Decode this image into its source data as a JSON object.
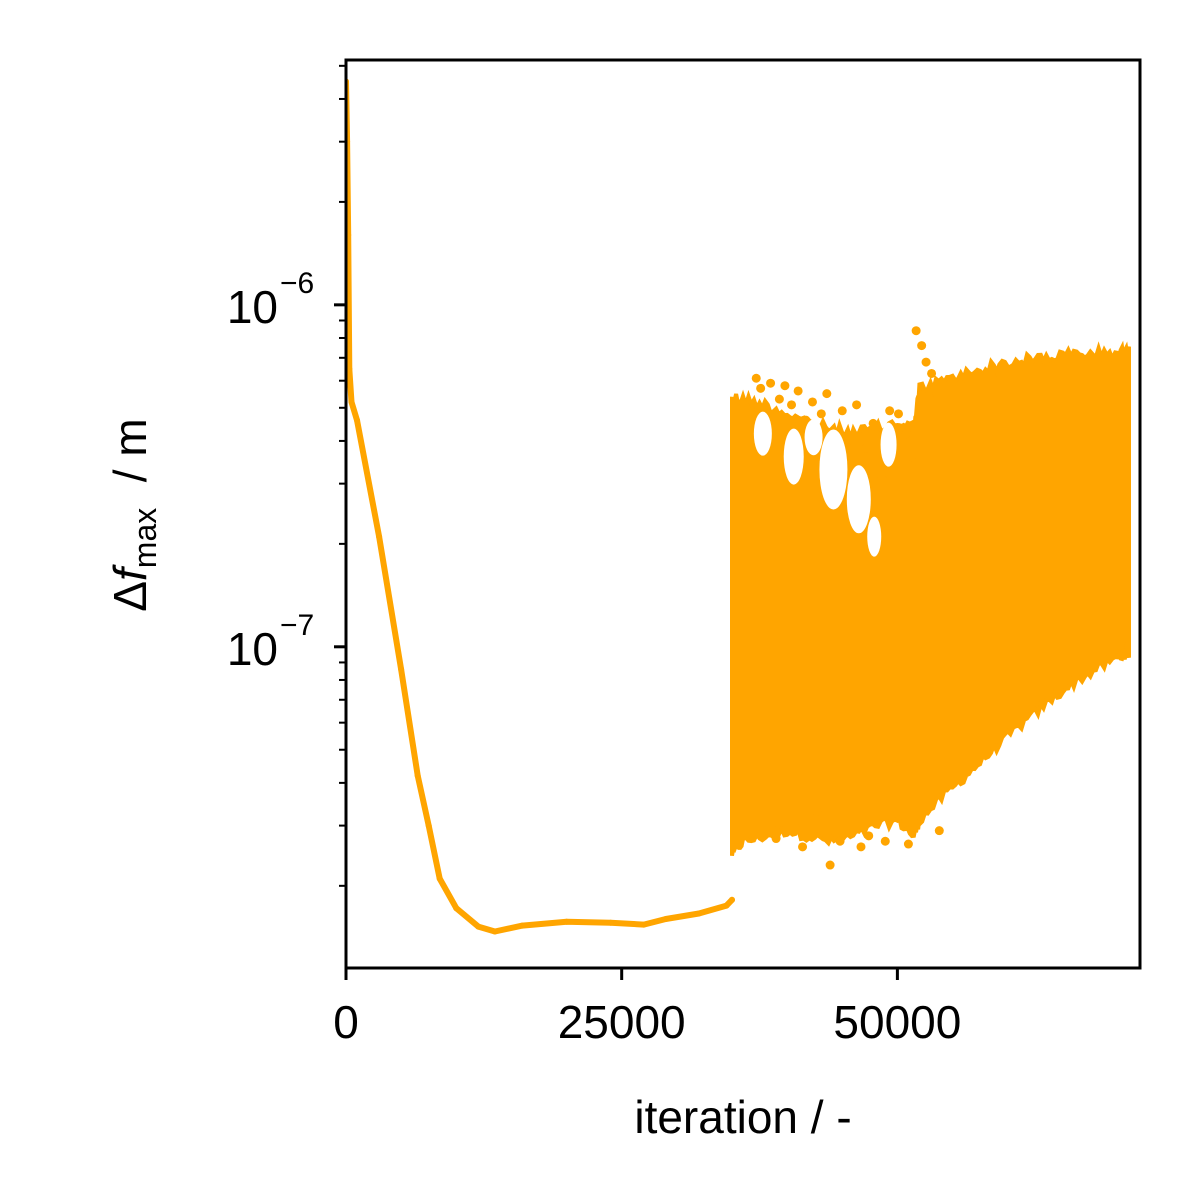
{
  "chart_data": {
    "type": "scatter",
    "xlabel": "iteration / -",
    "ylabel": {
      "symbol": "Δ",
      "var": "f",
      "sub": "max",
      "unit": "  / m"
    },
    "xlim": [
      0,
      72000
    ],
    "ylim": [
      1.15e-08,
      5.2e-06
    ],
    "yscale": "log",
    "grid": false,
    "color": "#FFA500",
    "xticks": [
      {
        "value": 0,
        "label": "0"
      },
      {
        "value": 25000,
        "label": "25000"
      },
      {
        "value": 50000,
        "label": "50000"
      }
    ],
    "yticks": [
      {
        "value": 1e-07,
        "base": "10",
        "exp": "−7"
      },
      {
        "value": 1e-06,
        "base": "10",
        "exp": "−6"
      }
    ],
    "series": [
      {
        "kind": "line",
        "x": [
          0,
          100,
          200,
          300,
          500,
          1000,
          3000,
          5000,
          6500,
          7500,
          8500,
          10000,
          12000,
          13500,
          16000,
          20000,
          24000,
          27000,
          29000,
          32000,
          34500,
          35000
        ],
        "y": [
          4.5e-06,
          3e-06,
          1.6e-06,
          6.5e-07,
          5.2e-07,
          4.6e-07,
          2.1e-07,
          8.6e-08,
          4.2e-08,
          3e-08,
          2.1e-08,
          1.72e-08,
          1.52e-08,
          1.47e-08,
          1.53e-08,
          1.57e-08,
          1.56e-08,
          1.54e-08,
          1.6e-08,
          1.66e-08,
          1.75e-08,
          1.82e-08
        ]
      },
      {
        "kind": "band",
        "x": [
          35000,
          36000,
          38000,
          40000,
          42000,
          44000,
          46000,
          48000,
          50000,
          51500,
          52000,
          54000,
          56000,
          58000,
          60000,
          62000,
          64000,
          66000,
          68000,
          70000,
          71000
        ],
        "upper": [
          5.6e-07,
          5.5e-07,
          5.3e-07,
          5e-07,
          4.7e-07,
          4.5e-07,
          4.4e-07,
          4.5e-07,
          4.7e-07,
          4.6e-07,
          5.9e-07,
          6.2e-07,
          6.5e-07,
          6.8e-07,
          7e-07,
          7.2e-07,
          7.35e-07,
          7.45e-07,
          7.5e-07,
          7.55e-07,
          7.55e-07
        ],
        "lower": [
          2.4e-08,
          2.6e-08,
          2.7e-08,
          2.8e-08,
          2.7e-08,
          2.6e-08,
          2.7e-08,
          2.9e-08,
          3e-08,
          2.7e-08,
          3e-08,
          3.5e-08,
          4e-08,
          4.6e-08,
          5.3e-08,
          6e-08,
          6.8e-08,
          7.6e-08,
          8.3e-08,
          9e-08,
          9.3e-08
        ]
      },
      {
        "kind": "points",
        "x": [
          37200,
          37600,
          38500,
          39300,
          39800,
          40400,
          41000,
          41700,
          42300,
          43100,
          43600,
          44400,
          45000,
          45700,
          46300,
          47100,
          47800,
          48600,
          49300,
          50100,
          50800,
          51300,
          51700,
          52200,
          52600,
          53100,
          39000,
          41400,
          43900,
          46700,
          48900,
          51000,
          53800,
          44800,
          47400,
          42700
        ],
        "y": [
          6.1e-07,
          5.7e-07,
          5.9e-07,
          5.3e-07,
          5.8e-07,
          5.1e-07,
          5.6e-07,
          4.6e-07,
          5.2e-07,
          4.8e-07,
          5.5e-07,
          4.1e-07,
          4.9e-07,
          3.3e-07,
          5.1e-07,
          3.8e-07,
          4.5e-07,
          3.1e-07,
          4.9e-07,
          4.8e-07,
          4.2e-07,
          3.6e-07,
          8.4e-07,
          7.6e-07,
          6.8e-07,
          6.3e-07,
          2.75e-08,
          2.6e-08,
          2.3e-08,
          2.6e-08,
          2.7e-08,
          2.65e-08,
          2.9e-08,
          2.7e-08,
          2.8e-08,
          3.3e-08
        ]
      }
    ]
  }
}
